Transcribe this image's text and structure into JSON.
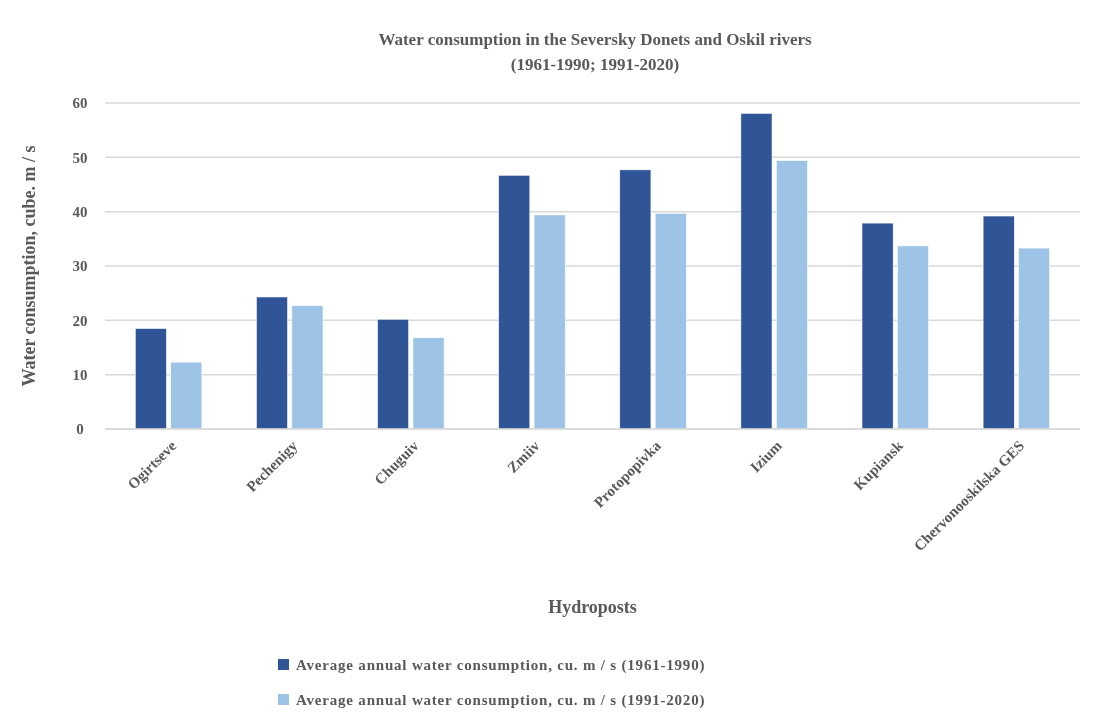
{
  "chart_data": {
    "type": "bar",
    "title": "Water consumption in the Seversky Donets and Oskil rivers",
    "subtitle": "(1961-1990; 1991-2020)",
    "xlabel": "Hydroposts",
    "ylabel": "Water consumption, cube. m / s",
    "categories": [
      "Ogirtseve",
      "Pechenigy",
      "Chuguiv",
      "Zmiiv",
      "Protopopivka",
      "Izium",
      "Kupiansk",
      "Chervonooskilska GES"
    ],
    "series": [
      {
        "name": "Average annual water consumption, cu. m / s (1961-1990)",
        "color": "#2f5597",
        "values": [
          18.5,
          24.3,
          20.2,
          46.7,
          47.7,
          58.1,
          37.9,
          39.2
        ]
      },
      {
        "name": "Average annual water consumption, cu. m / s (1991-2020)",
        "color": "#9dc3e6",
        "values": [
          12.3,
          22.7,
          16.8,
          39.4,
          39.7,
          49.4,
          33.7,
          33.3
        ]
      }
    ],
    "ylim": [
      0,
      60
    ],
    "yticks": [
      0,
      10,
      20,
      30,
      40,
      50,
      60
    ],
    "grid": "y",
    "legend": "bottom"
  }
}
